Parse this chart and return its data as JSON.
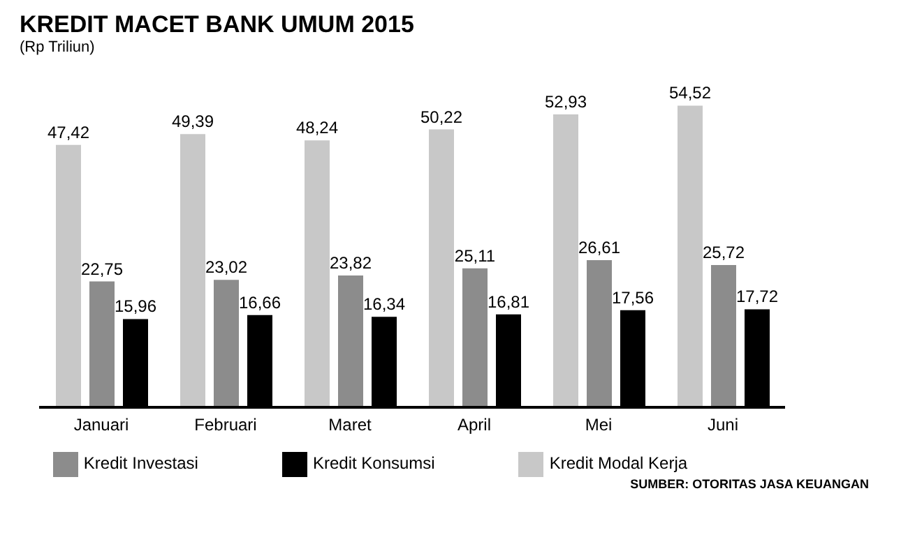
{
  "chart_data": {
    "type": "bar",
    "title": "KREDIT MACET BANK UMUM 2015",
    "subtitle": "(Rp Triliun)",
    "categories": [
      "Januari",
      "Februari",
      "Maret",
      "April",
      "Mei",
      "Juni"
    ],
    "series": [
      {
        "name": "Kredit Modal Kerja",
        "color": "#c8c8c8",
        "values": [
          47.42,
          49.39,
          48.24,
          50.22,
          52.93,
          54.52
        ],
        "value_labels": [
          "47,42",
          "49,39",
          "48,24",
          "50,22",
          "52,93",
          "54,52"
        ]
      },
      {
        "name": "Kredit Investasi",
        "color": "#8c8c8c",
        "values": [
          22.75,
          23.02,
          23.82,
          25.11,
          26.61,
          25.72
        ],
        "value_labels": [
          "22,75",
          "23,02",
          "23,82",
          "25,11",
          "26,61",
          "25,72"
        ]
      },
      {
        "name": "Kredit Konsumsi",
        "color": "#000000",
        "values": [
          15.96,
          16.66,
          16.34,
          16.81,
          17.56,
          17.72
        ],
        "value_labels": [
          "15,96",
          "16,66",
          "16,34",
          "16,81",
          "17,56",
          "17,72"
        ]
      }
    ],
    "legend": "bottom",
    "grid": false,
    "annotations": [
      "SUMBER: OTORITAS JASA KEUANGAN"
    ]
  }
}
